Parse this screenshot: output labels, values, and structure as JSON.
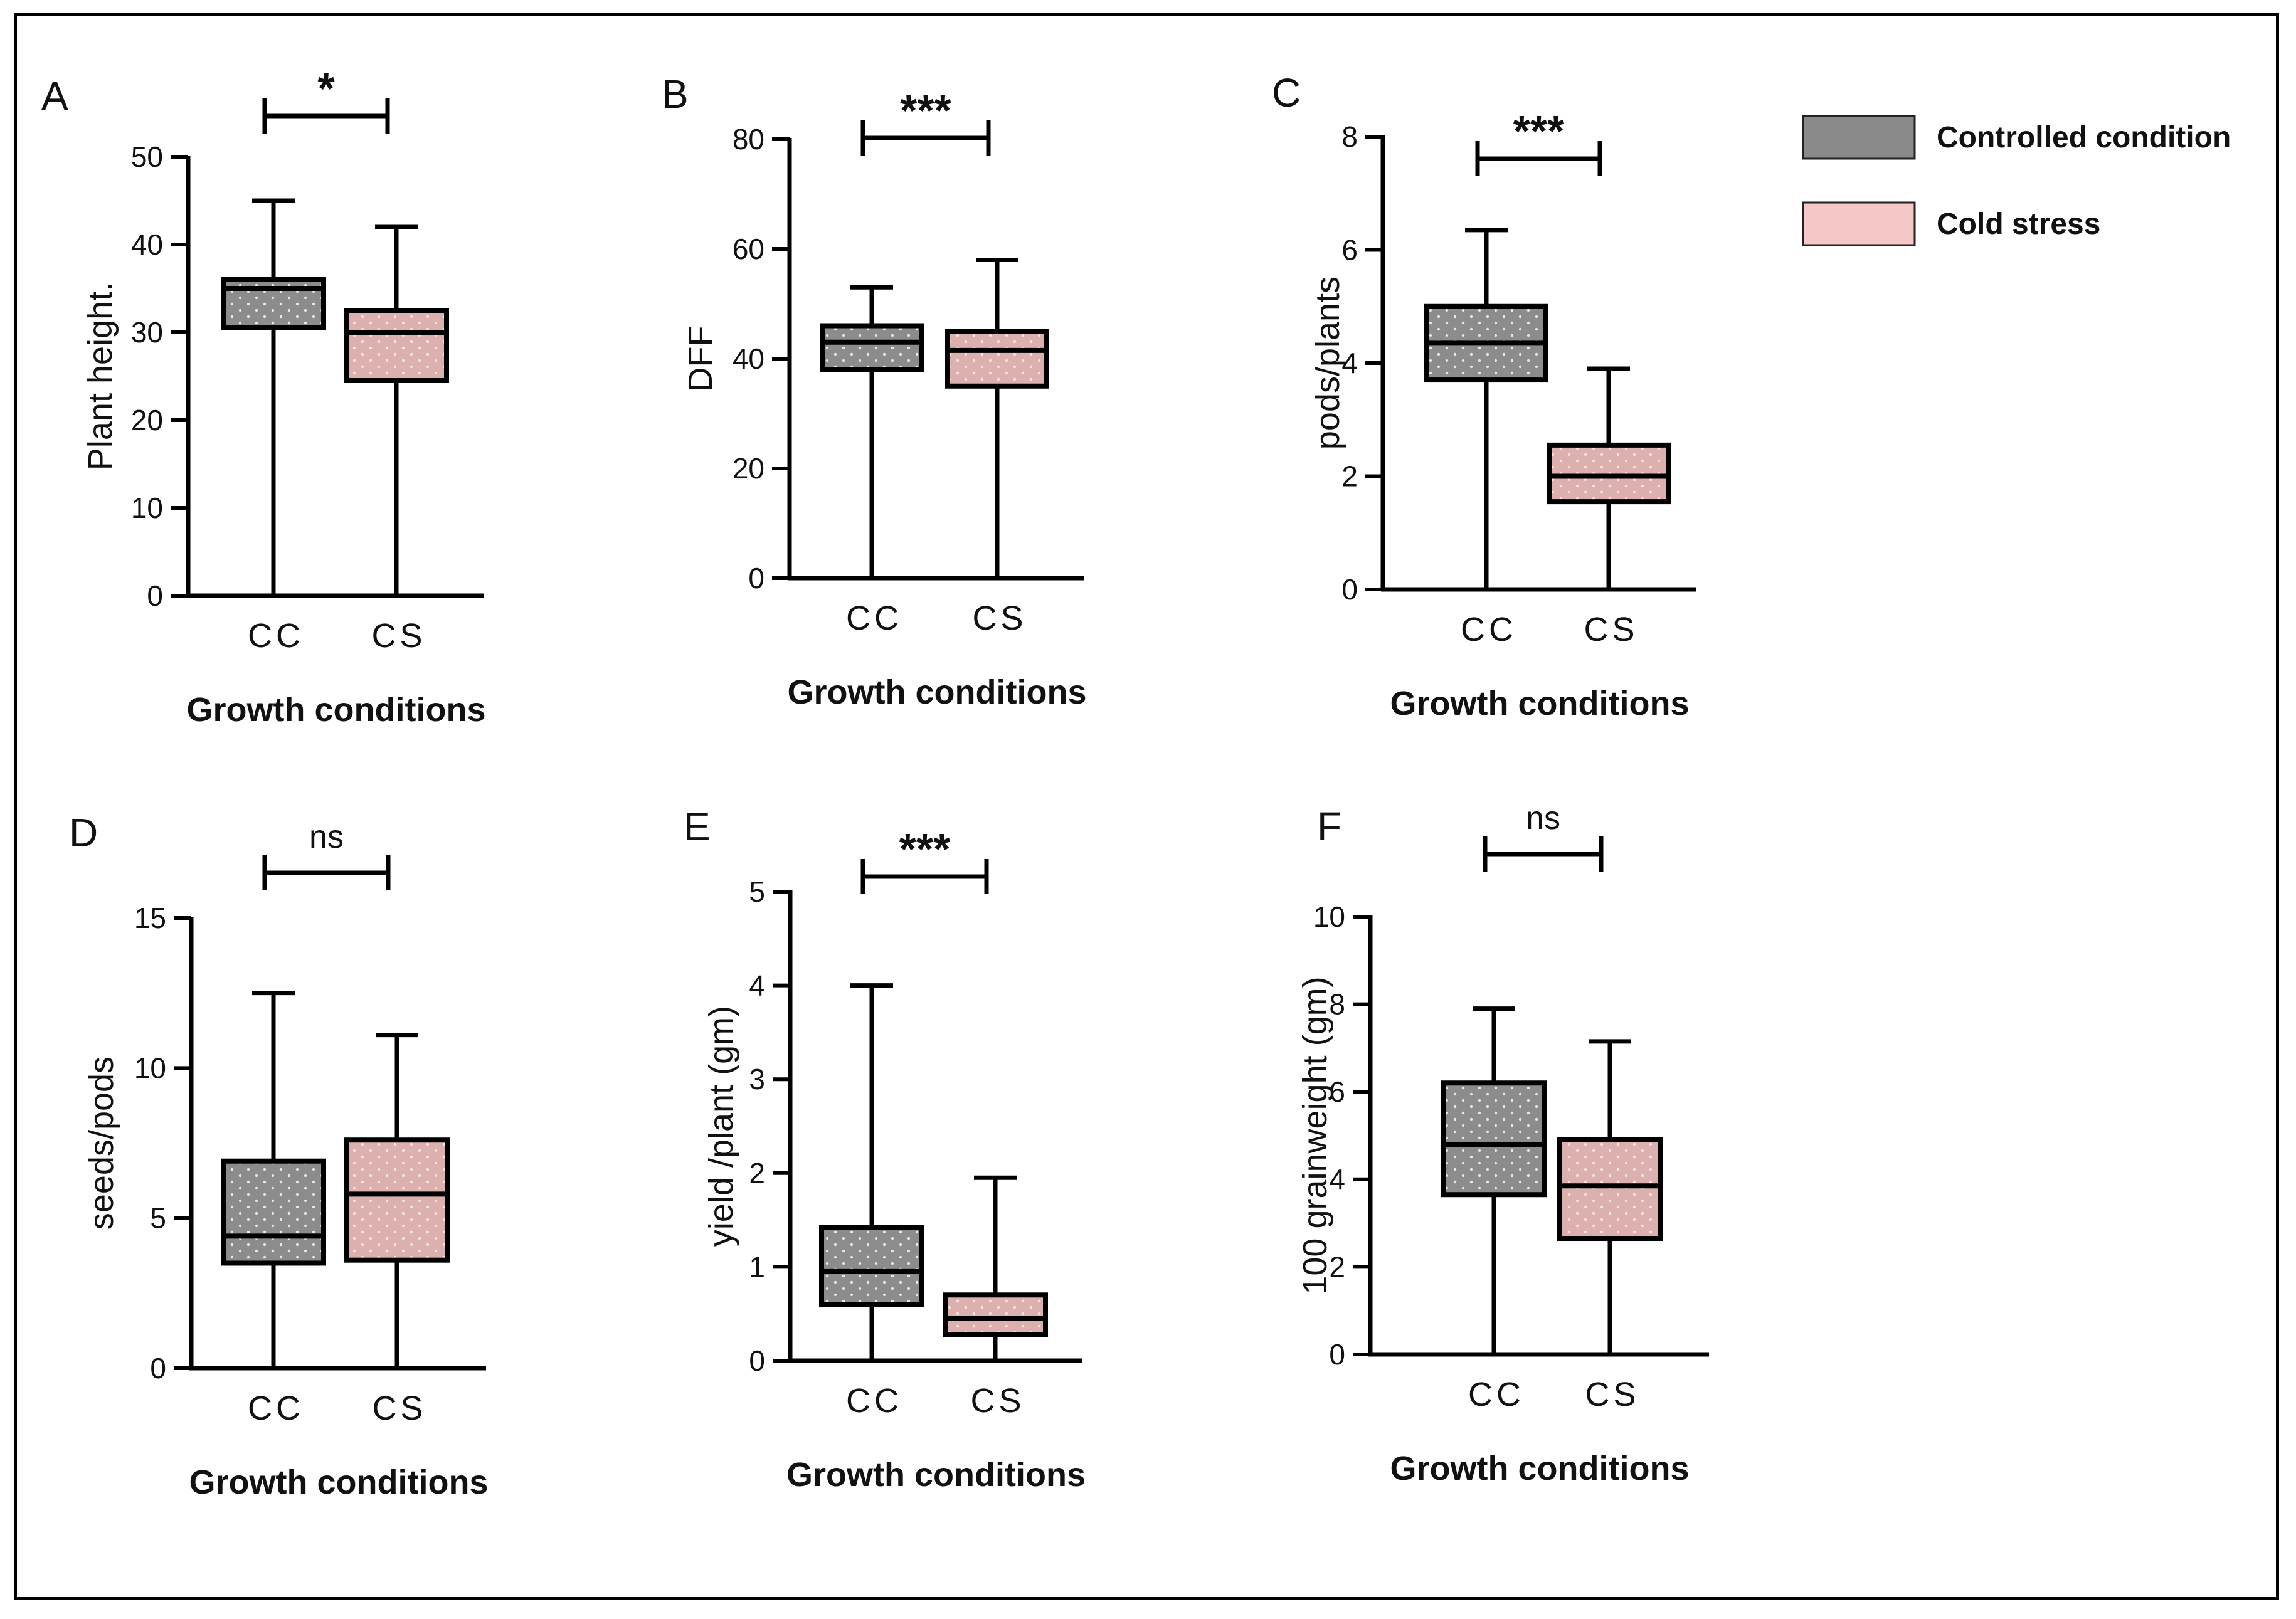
{
  "legend": [
    {
      "label": "Controlled condition",
      "color": "#8a8a8a"
    },
    {
      "label": "Cold stress",
      "color": "#f6c7c7"
    }
  ],
  "chart_data": [
    {
      "panel": "A",
      "type": "boxplot",
      "ylabel": "Plant height.",
      "xlabel": "Growth conditions",
      "categories": [
        "CC",
        "CS"
      ],
      "ylim": [
        0,
        50
      ],
      "yticks": [
        0,
        10,
        20,
        30,
        40,
        50
      ],
      "significance": "*",
      "boxes": [
        {
          "category": "CC",
          "min": 0,
          "q1": 30.5,
          "median": 35,
          "q3": 36,
          "max": 45
        },
        {
          "category": "CS",
          "min": 0,
          "q1": 24.5,
          "median": 30,
          "q3": 32.5,
          "max": 42
        }
      ]
    },
    {
      "panel": "B",
      "type": "boxplot",
      "ylabel": "DFF",
      "xlabel": "Growth conditions",
      "categories": [
        "CC",
        "CS"
      ],
      "ylim": [
        0,
        80
      ],
      "yticks": [
        0,
        20,
        40,
        60,
        80
      ],
      "significance": "***",
      "boxes": [
        {
          "category": "CC",
          "min": 0,
          "q1": 38,
          "median": 43,
          "q3": 46,
          "max": 53
        },
        {
          "category": "CS",
          "min": 0,
          "q1": 35,
          "median": 41.5,
          "q3": 45,
          "max": 58
        }
      ]
    },
    {
      "panel": "C",
      "type": "boxplot",
      "ylabel": "pods/plants",
      "xlabel": "Growth conditions",
      "categories": [
        "CC",
        "CS"
      ],
      "ylim": [
        0,
        8
      ],
      "yticks": [
        0,
        2,
        4,
        6,
        8
      ],
      "significance": "***",
      "boxes": [
        {
          "category": "CC",
          "min": 0,
          "q1": 3.7,
          "median": 4.35,
          "q3": 5.0,
          "max": 6.35
        },
        {
          "category": "CS",
          "min": 0,
          "q1": 1.55,
          "median": 2.0,
          "q3": 2.55,
          "max": 3.9
        }
      ]
    },
    {
      "panel": "D",
      "type": "boxplot",
      "ylabel": "seeds/pods",
      "xlabel": "Growth conditions",
      "categories": [
        "CC",
        "CS"
      ],
      "ylim": [
        0,
        15
      ],
      "yticks": [
        0,
        5,
        10,
        15
      ],
      "significance": "ns",
      "boxes": [
        {
          "category": "CC",
          "min": 0,
          "q1": 3.5,
          "median": 4.4,
          "q3": 6.9,
          "max": 12.5
        },
        {
          "category": "CS",
          "min": 0,
          "q1": 3.6,
          "median": 5.8,
          "q3": 7.6,
          "max": 11.1
        }
      ]
    },
    {
      "panel": "E",
      "type": "boxplot",
      "ylabel": "yield /plant (gm)",
      "xlabel": "Growth conditions",
      "categories": [
        "CC",
        "CS"
      ],
      "ylim": [
        0,
        5
      ],
      "yticks": [
        0,
        1,
        2,
        3,
        4,
        5
      ],
      "significance": "***",
      "boxes": [
        {
          "category": "CC",
          "min": 0,
          "q1": 0.6,
          "median": 0.95,
          "q3": 1.42,
          "max": 4.0
        },
        {
          "category": "CS",
          "min": 0,
          "q1": 0.28,
          "median": 0.45,
          "q3": 0.7,
          "max": 1.95
        }
      ]
    },
    {
      "panel": "F",
      "type": "boxplot",
      "ylabel": "100 grainweight (gm)",
      "xlabel": "Growth conditions",
      "categories": [
        "CC",
        "CS"
      ],
      "ylim": [
        0,
        10
      ],
      "yticks": [
        0,
        2,
        4,
        6,
        8,
        10
      ],
      "significance": "ns",
      "boxes": [
        {
          "category": "CC",
          "min": 0,
          "q1": 3.65,
          "median": 4.8,
          "q3": 6.2,
          "max": 7.9
        },
        {
          "category": "CS",
          "min": 0,
          "q1": 2.65,
          "median": 3.85,
          "q3": 4.9,
          "max": 7.15
        }
      ]
    }
  ]
}
